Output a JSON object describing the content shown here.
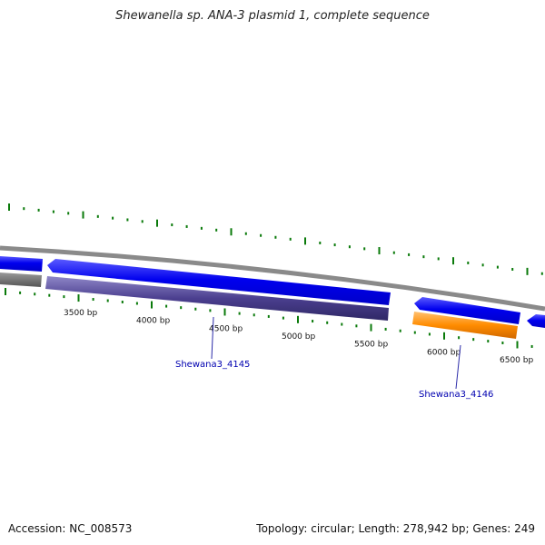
{
  "title": "Shewanella sp. ANA-3 plasmid 1, complete sequence",
  "footer": {
    "accession": "Accession: NC_008573",
    "summary": "Topology: circular; Length: 278,942 bp; Genes: 249"
  },
  "scale": {
    "ticks": [
      {
        "bp": 3500,
        "label": "3500 bp"
      },
      {
        "bp": 4000,
        "label": "4000 bp"
      },
      {
        "bp": 4500,
        "label": "4500 bp"
      },
      {
        "bp": 5000,
        "label": "5000 bp"
      },
      {
        "bp": 5500,
        "label": "5500 bp"
      },
      {
        "bp": 6000,
        "label": "6000 bp"
      },
      {
        "bp": 6500,
        "label": "6500 bp"
      }
    ]
  },
  "genes": [
    {
      "name": "Shewana3_4145",
      "color": "#4b3f8f",
      "label": "Shewana3_4145"
    },
    {
      "name": "Shewana3_4146",
      "color": "#ff8c00",
      "label": "Shewana3_4146"
    }
  ],
  "colors": {
    "cds_blue": "#0000ee",
    "backbone": "#8a8a8a",
    "tick_green": "#0a7a0a",
    "gray_feature": "#6a6a6a"
  }
}
